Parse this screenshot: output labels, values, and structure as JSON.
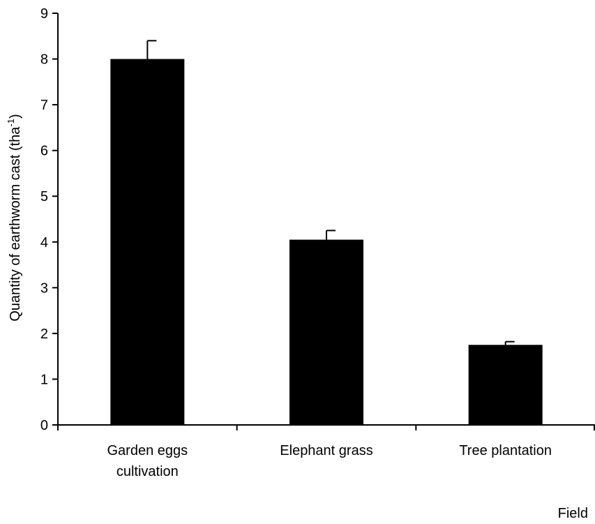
{
  "chart_data": {
    "type": "bar",
    "categories": [
      [
        "Garden eggs",
        "cultivation"
      ],
      [
        "Elephant grass"
      ],
      [
        "Tree plantation"
      ]
    ],
    "values": [
      8.0,
      4.05,
      1.75
    ],
    "error_plus": [
      0.4,
      0.2,
      0.07
    ],
    "ylabel": {
      "main": "Quantity of earthworm cast (tha",
      "sup": "-1",
      "end": ")"
    },
    "xlabel": "Field",
    "ylim": [
      0,
      9
    ],
    "yticks": [
      0,
      1,
      2,
      3,
      4,
      5,
      6,
      7,
      8,
      9
    ],
    "grid": false,
    "legend": "none",
    "bar_color": "#000000",
    "axis_color": "#000000"
  }
}
